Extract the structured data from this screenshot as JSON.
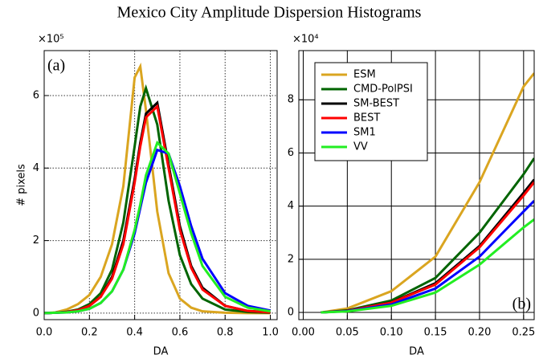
{
  "title": "Mexico City Amplitude Dispersion Histograms",
  "chart_data": [
    {
      "type": "line",
      "panel_label": "(a)",
      "x_label": "DA",
      "y_label": "# pixels",
      "y_multiplier": "×10⁵",
      "x": [
        0,
        0.05,
        0.1,
        0.15,
        0.2,
        0.25,
        0.3,
        0.35,
        0.4,
        0.425,
        0.45,
        0.5,
        0.55,
        0.6,
        0.65,
        0.7,
        0.8,
        0.9,
        1.0
      ],
      "series": [
        {
          "color": "#daa520",
          "values": [
            0,
            0.02,
            0.1,
            0.25,
            0.5,
            1.0,
            1.9,
            3.5,
            6.5,
            6.8,
            5.6,
            2.8,
            1.1,
            0.4,
            0.15,
            0.05,
            0.01,
            0,
            0
          ]
        },
        {
          "color": "#006400",
          "values": [
            0,
            0.01,
            0.04,
            0.1,
            0.25,
            0.55,
            1.2,
            2.5,
            4.6,
            5.7,
            6.2,
            5.2,
            3.1,
            1.6,
            0.8,
            0.4,
            0.1,
            0.03,
            0.01
          ]
        },
        {
          "color": "#000000",
          "values": [
            0,
            0.01,
            0.03,
            0.08,
            0.2,
            0.45,
            1.0,
            2.0,
            3.7,
            4.7,
            5.5,
            5.8,
            4.1,
            2.4,
            1.3,
            0.7,
            0.2,
            0.06,
            0.02
          ]
        },
        {
          "color": "#ff0000",
          "values": [
            0,
            0.01,
            0.03,
            0.08,
            0.2,
            0.45,
            0.95,
            1.9,
            3.6,
            4.6,
            5.4,
            5.7,
            4.0,
            2.3,
            1.25,
            0.65,
            0.2,
            0.06,
            0.02
          ]
        },
        {
          "color": "#0000ff",
          "values": [
            0,
            0.01,
            0.02,
            0.05,
            0.12,
            0.28,
            0.6,
            1.2,
            2.2,
            2.9,
            3.6,
            4.5,
            4.4,
            3.5,
            2.4,
            1.5,
            0.55,
            0.2,
            0.07
          ]
        },
        {
          "color": "#22ee22",
          "values": [
            0,
            0.01,
            0.02,
            0.05,
            0.12,
            0.28,
            0.6,
            1.2,
            2.3,
            3.0,
            3.8,
            4.7,
            4.4,
            3.3,
            2.2,
            1.3,
            0.45,
            0.15,
            0.05
          ]
        }
      ],
      "xlim": [
        0,
        1.03
      ],
      "xticks": [
        {
          "value": 0,
          "label": "0.0"
        },
        0.2,
        0.4,
        0.6,
        0.8,
        {
          "value": 1,
          "label": "1.0"
        }
      ],
      "ylim": [
        -0.18,
        7.24
      ],
      "yticks": [
        0,
        2,
        4,
        6
      ],
      "grid": "dotted",
      "panel_label_corner": "upper left"
    },
    {
      "type": "line",
      "panel_label": "(b)",
      "x_label": "DA",
      "y_multiplier": "×10⁴",
      "x": [
        0.02,
        0.05,
        0.1,
        0.15,
        0.2,
        0.25,
        0.262
      ],
      "series": [
        {
          "name": "ESM",
          "color": "#daa520",
          "values": [
            0,
            0.15,
            0.8,
            2.1,
            4.9,
            8.5,
            9.0
          ]
        },
        {
          "name": "CMD-PolPSI",
          "color": "#006400",
          "values": [
            0,
            0.08,
            0.45,
            1.3,
            3.0,
            5.2,
            5.8
          ]
        },
        {
          "name": "SM-BEST",
          "color": "#000000",
          "values": [
            0,
            0.06,
            0.38,
            1.1,
            2.5,
            4.5,
            5.0
          ]
        },
        {
          "name": "BEST",
          "color": "#ff0000",
          "values": [
            0,
            0.06,
            0.37,
            1.05,
            2.45,
            4.4,
            4.9
          ]
        },
        {
          "name": "SM1",
          "color": "#0000ff",
          "values": [
            0,
            0.05,
            0.3,
            0.9,
            2.1,
            3.8,
            4.2
          ]
        },
        {
          "name": "VV",
          "color": "#22ee22",
          "values": [
            0,
            0.04,
            0.25,
            0.75,
            1.8,
            3.2,
            3.5
          ]
        }
      ],
      "xlim": [
        -0.005,
        0.262
      ],
      "xticks": [
        {
          "value": 0,
          "label": "0.00"
        },
        0.05,
        {
          "value": 0.1,
          "label": "0.10"
        },
        0.15,
        {
          "value": 0.2,
          "label": "0.20"
        },
        0.25
      ],
      "ylim": [
        -0.27,
        9.85
      ],
      "yticks": [
        0,
        2,
        4,
        6,
        8
      ],
      "grid": "solid",
      "legend": "upper left",
      "panel_label_corner": "lower right"
    }
  ]
}
